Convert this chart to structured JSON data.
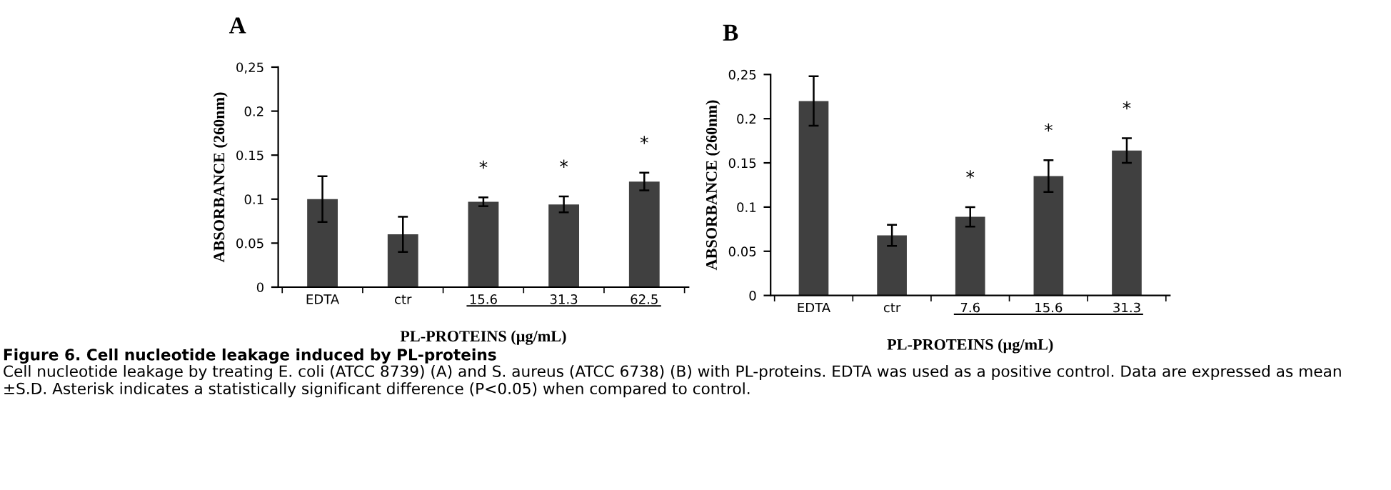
{
  "chart_data": [
    {
      "type": "bar",
      "title": "A",
      "categories": [
        "EDTA",
        "ctr",
        "15.6",
        "31.3",
        "62.5"
      ],
      "values": [
        0.1,
        0.06,
        0.097,
        0.094,
        0.12
      ],
      "errors": [
        0.026,
        0.02,
        0.005,
        0.009,
        0.01
      ],
      "color": "#404040",
      "xlabel": "PL-PROTEINS (µg/mL)",
      "ylabel": "ABSORBANCE (260nm)",
      "ylim": [
        0,
        0.25
      ],
      "yticks": [
        0,
        0.05,
        0.1,
        0.15,
        0.2,
        {
          "value": 0.25,
          "label": "0,25"
        }
      ],
      "grid": false,
      "legend": false,
      "annotations": [
        "*",
        "*",
        "*"
      ]
    },
    {
      "type": "bar",
      "title": "B",
      "categories": [
        "EDTA",
        "ctr",
        "7.6",
        "15.6",
        "31.3"
      ],
      "values": [
        0.22,
        0.068,
        0.089,
        0.135,
        0.164
      ],
      "errors": [
        0.028,
        0.012,
        0.011,
        0.018,
        0.014
      ],
      "color": "#404040",
      "xlabel": "PL-PROTEINS (µg/mL)",
      "ylabel": "ABSORBANCE (260nm)",
      "ylim": [
        0,
        0.25
      ],
      "yticks": [
        0,
        0.05,
        0.1,
        0.15,
        0.2,
        {
          "value": 0.25,
          "label": "0,25"
        }
      ],
      "grid": false,
      "legend": false,
      "annotations": [
        "*",
        "*",
        "*"
      ]
    },
    {
      "type": "other",
      "title": "Figure 6. Cell nucleotide leakage induced by PL-proteins",
      "annotations": [
        "Cell nucleotide leakage by treating E. coli (ATCC 8739) (A) and S. aureus (ATCC 6738) (B) with PL-proteins. EDTA was used as a positive control. Data are expressed as mean ±S.D. Asterisk indicates a statistically significant difference (P<0.05) when compared to control."
      ]
    }
  ]
}
